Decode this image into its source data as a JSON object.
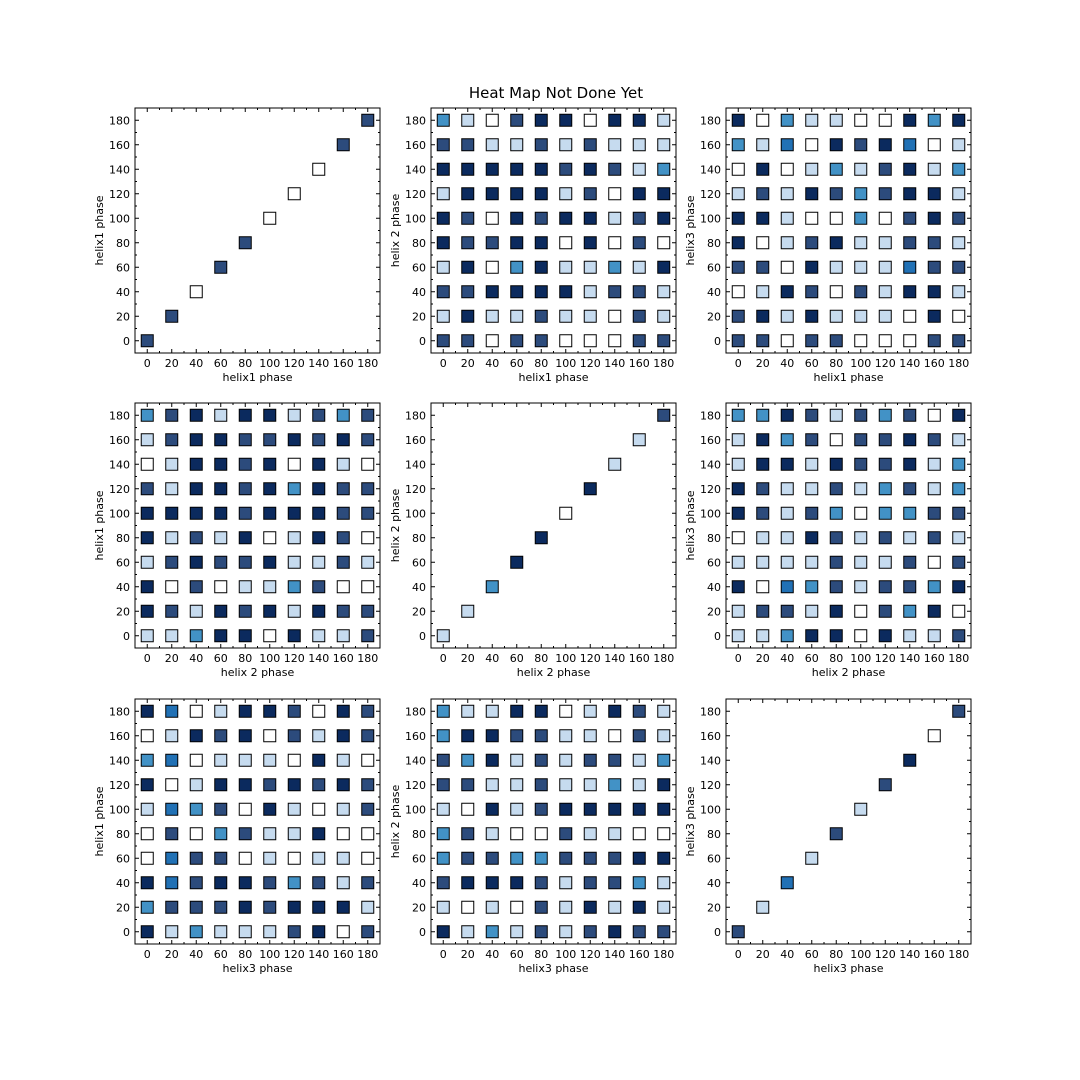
{
  "title": "Heat Map Not Done Yet",
  "colors": {
    "scale": [
      "#ffffff",
      "#c6dbef",
      "#9ecae1",
      "#6baed6",
      "#4292c6",
      "#2171b5",
      "#08519c",
      "#2c4b7c",
      "#18376a",
      "#0b2a5e"
    ],
    "edge": "#000000",
    "axis": "#000000"
  },
  "chart_data": [
    {
      "type": "heatmap",
      "row": 0,
      "col": 0,
      "xlabel": "helix1 phase",
      "ylabel": "helix1 phase",
      "xticks": [
        "0",
        "20",
        "40",
        "60",
        "80",
        "100",
        "120",
        "140",
        "160",
        "180"
      ],
      "yticks": [
        "0",
        "20",
        "40",
        "60",
        "80",
        "100",
        "120",
        "140",
        "160",
        "180"
      ],
      "xlim": [
        -10,
        190
      ],
      "ylim": [
        -10,
        190
      ],
      "diagonal": true,
      "values": [
        7,
        7,
        0,
        7,
        7,
        0,
        0,
        0,
        7,
        7
      ]
    },
    {
      "type": "heatmap",
      "row": 0,
      "col": 1,
      "xlabel": "helix1 phase",
      "ylabel": "helix 2 phase",
      "xticks": [
        "0",
        "20",
        "40",
        "60",
        "80",
        "100",
        "120",
        "140",
        "160",
        "180"
      ],
      "yticks": [
        "0",
        "20",
        "40",
        "60",
        "80",
        "100",
        "120",
        "140",
        "160",
        "180"
      ],
      "xlim": [
        -10,
        190
      ],
      "ylim": [
        -10,
        190
      ],
      "values": [
        [
          4,
          1,
          0,
          7,
          9,
          9,
          0,
          9,
          9,
          1
        ],
        [
          7,
          7,
          1,
          1,
          7,
          1,
          7,
          1,
          1,
          1
        ],
        [
          9,
          9,
          9,
          9,
          9,
          7,
          9,
          7,
          1,
          4
        ],
        [
          1,
          9,
          9,
          9,
          9,
          1,
          7,
          0,
          9,
          9
        ],
        [
          9,
          7,
          0,
          9,
          7,
          9,
          9,
          1,
          7,
          9
        ],
        [
          9,
          7,
          7,
          9,
          9,
          0,
          9,
          0,
          7,
          0
        ],
        [
          1,
          9,
          0,
          4,
          9,
          1,
          1,
          4,
          1,
          9
        ],
        [
          7,
          7,
          9,
          9,
          9,
          9,
          1,
          7,
          7,
          1
        ],
        [
          1,
          9,
          1,
          1,
          7,
          1,
          1,
          0,
          7,
          1
        ],
        [
          7,
          7,
          0,
          7,
          7,
          0,
          0,
          0,
          7,
          7
        ]
      ]
    },
    {
      "type": "heatmap",
      "row": 0,
      "col": 2,
      "xlabel": "helix1 phase",
      "ylabel": "helix3 phase",
      "xticks": [
        "0",
        "20",
        "40",
        "60",
        "80",
        "100",
        "120",
        "140",
        "160",
        "180"
      ],
      "yticks": [
        "0",
        "20",
        "40",
        "60",
        "80",
        "100",
        "120",
        "140",
        "160",
        "180"
      ],
      "xlim": [
        -10,
        190
      ],
      "ylim": [
        -10,
        190
      ],
      "values": [
        [
          9,
          0,
          4,
          1,
          1,
          0,
          0,
          9,
          4,
          9
        ],
        [
          4,
          1,
          5,
          0,
          9,
          7,
          9,
          5,
          0,
          1
        ],
        [
          0,
          9,
          0,
          1,
          4,
          1,
          7,
          9,
          1,
          4
        ],
        [
          1,
          7,
          1,
          9,
          7,
          4,
          7,
          9,
          9,
          1
        ],
        [
          9,
          9,
          1,
          0,
          0,
          4,
          0,
          7,
          9,
          7
        ],
        [
          9,
          0,
          1,
          7,
          9,
          1,
          1,
          7,
          7,
          1
        ],
        [
          7,
          7,
          0,
          9,
          1,
          1,
          1,
          5,
          7,
          7
        ],
        [
          0,
          1,
          9,
          7,
          0,
          7,
          1,
          9,
          9,
          1
        ],
        [
          7,
          9,
          1,
          9,
          1,
          1,
          1,
          0,
          9,
          0
        ],
        [
          7,
          7,
          0,
          7,
          7,
          0,
          0,
          0,
          7,
          7
        ]
      ]
    },
    {
      "type": "heatmap",
      "row": 1,
      "col": 0,
      "xlabel": "helix 2 phase",
      "ylabel": "helix1 phase",
      "xticks": [
        "0",
        "20",
        "40",
        "60",
        "80",
        "100",
        "120",
        "140",
        "160",
        "180"
      ],
      "yticks": [
        "0",
        "20",
        "40",
        "60",
        "80",
        "100",
        "120",
        "140",
        "160",
        "180"
      ],
      "xlim": [
        -10,
        190
      ],
      "ylim": [
        -10,
        190
      ],
      "values": [
        [
          4,
          7,
          9,
          1,
          9,
          9,
          1,
          7,
          4,
          7
        ],
        [
          1,
          7,
          9,
          9,
          7,
          7,
          9,
          7,
          9,
          7
        ],
        [
          0,
          1,
          9,
          9,
          7,
          9,
          0,
          9,
          1,
          0
        ],
        [
          7,
          1,
          9,
          9,
          7,
          9,
          4,
          9,
          7,
          7
        ],
        [
          9,
          9,
          9,
          9,
          7,
          9,
          9,
          9,
          7,
          7
        ],
        [
          9,
          1,
          7,
          1,
          9,
          0,
          1,
          9,
          7,
          0
        ],
        [
          1,
          7,
          9,
          7,
          7,
          9,
          1,
          1,
          7,
          1
        ],
        [
          9,
          0,
          7,
          0,
          1,
          1,
          4,
          7,
          0,
          0
        ],
        [
          9,
          7,
          1,
          9,
          7,
          9,
          1,
          9,
          7,
          7
        ],
        [
          1,
          1,
          4,
          9,
          9,
          0,
          9,
          1,
          1,
          7
        ]
      ]
    },
    {
      "type": "heatmap",
      "row": 1,
      "col": 1,
      "xlabel": "helix 2 phase",
      "ylabel": "helix 2 phase",
      "xticks": [
        "0",
        "20",
        "40",
        "60",
        "80",
        "100",
        "120",
        "140",
        "160",
        "180"
      ],
      "yticks": [
        "0",
        "20",
        "40",
        "60",
        "80",
        "100",
        "120",
        "140",
        "160",
        "180"
      ],
      "xlim": [
        -10,
        190
      ],
      "ylim": [
        -10,
        190
      ],
      "diagonal": true,
      "values": [
        1,
        1,
        4,
        9,
        9,
        0,
        9,
        1,
        1,
        7
      ]
    },
    {
      "type": "heatmap",
      "row": 1,
      "col": 2,
      "xlabel": "helix 2 phase",
      "ylabel": "helix3 phase",
      "xticks": [
        "0",
        "20",
        "40",
        "60",
        "80",
        "100",
        "120",
        "140",
        "160",
        "180"
      ],
      "yticks": [
        "0",
        "20",
        "40",
        "60",
        "80",
        "100",
        "120",
        "140",
        "160",
        "180"
      ],
      "xlim": [
        -10,
        190
      ],
      "ylim": [
        -10,
        190
      ],
      "values": [
        [
          4,
          4,
          9,
          7,
          1,
          7,
          4,
          7,
          0,
          9
        ],
        [
          1,
          9,
          4,
          7,
          0,
          7,
          7,
          9,
          7,
          1
        ],
        [
          1,
          9,
          9,
          1,
          9,
          7,
          7,
          9,
          1,
          4
        ],
        [
          9,
          7,
          1,
          1,
          7,
          1,
          4,
          7,
          1,
          4
        ],
        [
          9,
          7,
          1,
          7,
          4,
          0,
          4,
          4,
          7,
          7
        ],
        [
          0,
          1,
          1,
          9,
          7,
          1,
          7,
          1,
          7,
          1
        ],
        [
          1,
          1,
          1,
          1,
          7,
          1,
          1,
          7,
          0,
          7
        ],
        [
          9,
          0,
          5,
          4,
          7,
          1,
          7,
          7,
          4,
          9
        ],
        [
          1,
          7,
          7,
          1,
          9,
          0,
          7,
          4,
          9,
          0
        ],
        [
          1,
          1,
          4,
          9,
          9,
          0,
          9,
          1,
          1,
          7
        ]
      ]
    },
    {
      "type": "heatmap",
      "row": 2,
      "col": 0,
      "xlabel": "helix3 phase",
      "ylabel": "helix1 phase",
      "xticks": [
        "0",
        "20",
        "40",
        "60",
        "80",
        "100",
        "120",
        "140",
        "160",
        "180"
      ],
      "yticks": [
        "0",
        "20",
        "40",
        "60",
        "80",
        "100",
        "120",
        "140",
        "160",
        "180"
      ],
      "xlim": [
        -10,
        190
      ],
      "ylim": [
        -10,
        190
      ],
      "values": [
        [
          9,
          5,
          0,
          1,
          9,
          9,
          7,
          0,
          9,
          7
        ],
        [
          0,
          1,
          9,
          7,
          9,
          0,
          7,
          1,
          9,
          7
        ],
        [
          4,
          5,
          0,
          1,
          1,
          1,
          0,
          9,
          1,
          0
        ],
        [
          9,
          0,
          1,
          9,
          9,
          7,
          9,
          7,
          9,
          7
        ],
        [
          1,
          5,
          4,
          7,
          0,
          9,
          1,
          0,
          1,
          7
        ],
        [
          0,
          7,
          0,
          4,
          7,
          1,
          1,
          9,
          0,
          0
        ],
        [
          0,
          5,
          7,
          7,
          0,
          1,
          0,
          1,
          1,
          0
        ],
        [
          9,
          5,
          7,
          9,
          9,
          7,
          4,
          7,
          1,
          7
        ],
        [
          4,
          7,
          7,
          7,
          9,
          7,
          9,
          9,
          9,
          1
        ],
        [
          9,
          1,
          4,
          1,
          1,
          1,
          7,
          9,
          0,
          7
        ]
      ]
    },
    {
      "type": "heatmap",
      "row": 2,
      "col": 1,
      "xlabel": "helix3 phase",
      "ylabel": "helix 2 phase",
      "xticks": [
        "0",
        "20",
        "40",
        "60",
        "80",
        "100",
        "120",
        "140",
        "160",
        "180"
      ],
      "yticks": [
        "0",
        "20",
        "40",
        "60",
        "80",
        "100",
        "120",
        "140",
        "160",
        "180"
      ],
      "xlim": [
        -10,
        190
      ],
      "ylim": [
        -10,
        190
      ],
      "values": [
        [
          4,
          1,
          1,
          9,
          9,
          0,
          1,
          9,
          7,
          1
        ],
        [
          4,
          9,
          9,
          7,
          7,
          1,
          1,
          0,
          7,
          1
        ],
        [
          7,
          4,
          9,
          1,
          7,
          1,
          7,
          7,
          1,
          4
        ],
        [
          7,
          7,
          1,
          1,
          7,
          1,
          1,
          4,
          1,
          9
        ],
        [
          1,
          0,
          9,
          1,
          7,
          9,
          9,
          9,
          9,
          9
        ],
        [
          4,
          7,
          1,
          0,
          0,
          7,
          1,
          1,
          0,
          0
        ],
        [
          4,
          7,
          7,
          4,
          4,
          7,
          7,
          7,
          9,
          9
        ],
        [
          7,
          9,
          9,
          9,
          7,
          1,
          7,
          7,
          4,
          1
        ],
        [
          1,
          0,
          1,
          0,
          7,
          1,
          9,
          1,
          9,
          1
        ],
        [
          9,
          1,
          4,
          1,
          7,
          1,
          7,
          9,
          7,
          7
        ]
      ]
    },
    {
      "type": "heatmap",
      "row": 2,
      "col": 2,
      "xlabel": "helix3 phase",
      "ylabel": "helix3 phase",
      "xticks": [
        "0",
        "20",
        "40",
        "60",
        "80",
        "100",
        "120",
        "140",
        "160",
        "180"
      ],
      "yticks": [
        "0",
        "20",
        "40",
        "60",
        "80",
        "100",
        "120",
        "140",
        "160",
        "180"
      ],
      "xlim": [
        -10,
        190
      ],
      "ylim": [
        -10,
        190
      ],
      "diagonal": true,
      "values": [
        7,
        1,
        5,
        1,
        7,
        1,
        7,
        9,
        0,
        7
      ]
    }
  ]
}
